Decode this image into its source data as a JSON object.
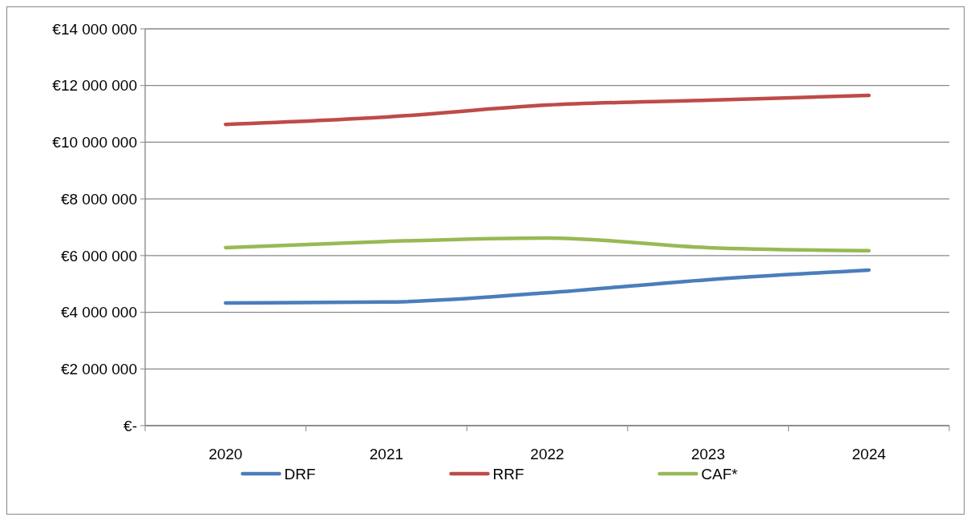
{
  "chart_data": {
    "type": "line",
    "categories": [
      "2020",
      "2021",
      "2022",
      "2023",
      "2024"
    ],
    "series": [
      {
        "name": "DRF",
        "color": "#4a7ebb",
        "values": [
          4330000,
          4360000,
          4690000,
          5150000,
          5490000
        ]
      },
      {
        "name": "RRF",
        "color": "#be4b48",
        "values": [
          10630000,
          10890000,
          11310000,
          11480000,
          11650000
        ]
      },
      {
        "name": "CAF*",
        "color": "#98b954",
        "values": [
          6280000,
          6500000,
          6620000,
          6280000,
          6170000
        ]
      }
    ],
    "ylim": [
      0,
      14000000
    ],
    "yticks": [
      {
        "value": 0,
        "label": "€-"
      },
      {
        "value": 2000000,
        "label": "€2 000 000"
      },
      {
        "value": 4000000,
        "label": "€4 000 000"
      },
      {
        "value": 6000000,
        "label": "€6 000 000"
      },
      {
        "value": 8000000,
        "label": "€8 000 000"
      },
      {
        "value": 10000000,
        "label": "€10 000 000"
      },
      {
        "value": 12000000,
        "label": "€12 000 000"
      },
      {
        "value": 14000000,
        "label": "€14 000 000"
      }
    ],
    "grid": "y",
    "legend": "bottom",
    "marker": "none",
    "line_style": "solid"
  }
}
